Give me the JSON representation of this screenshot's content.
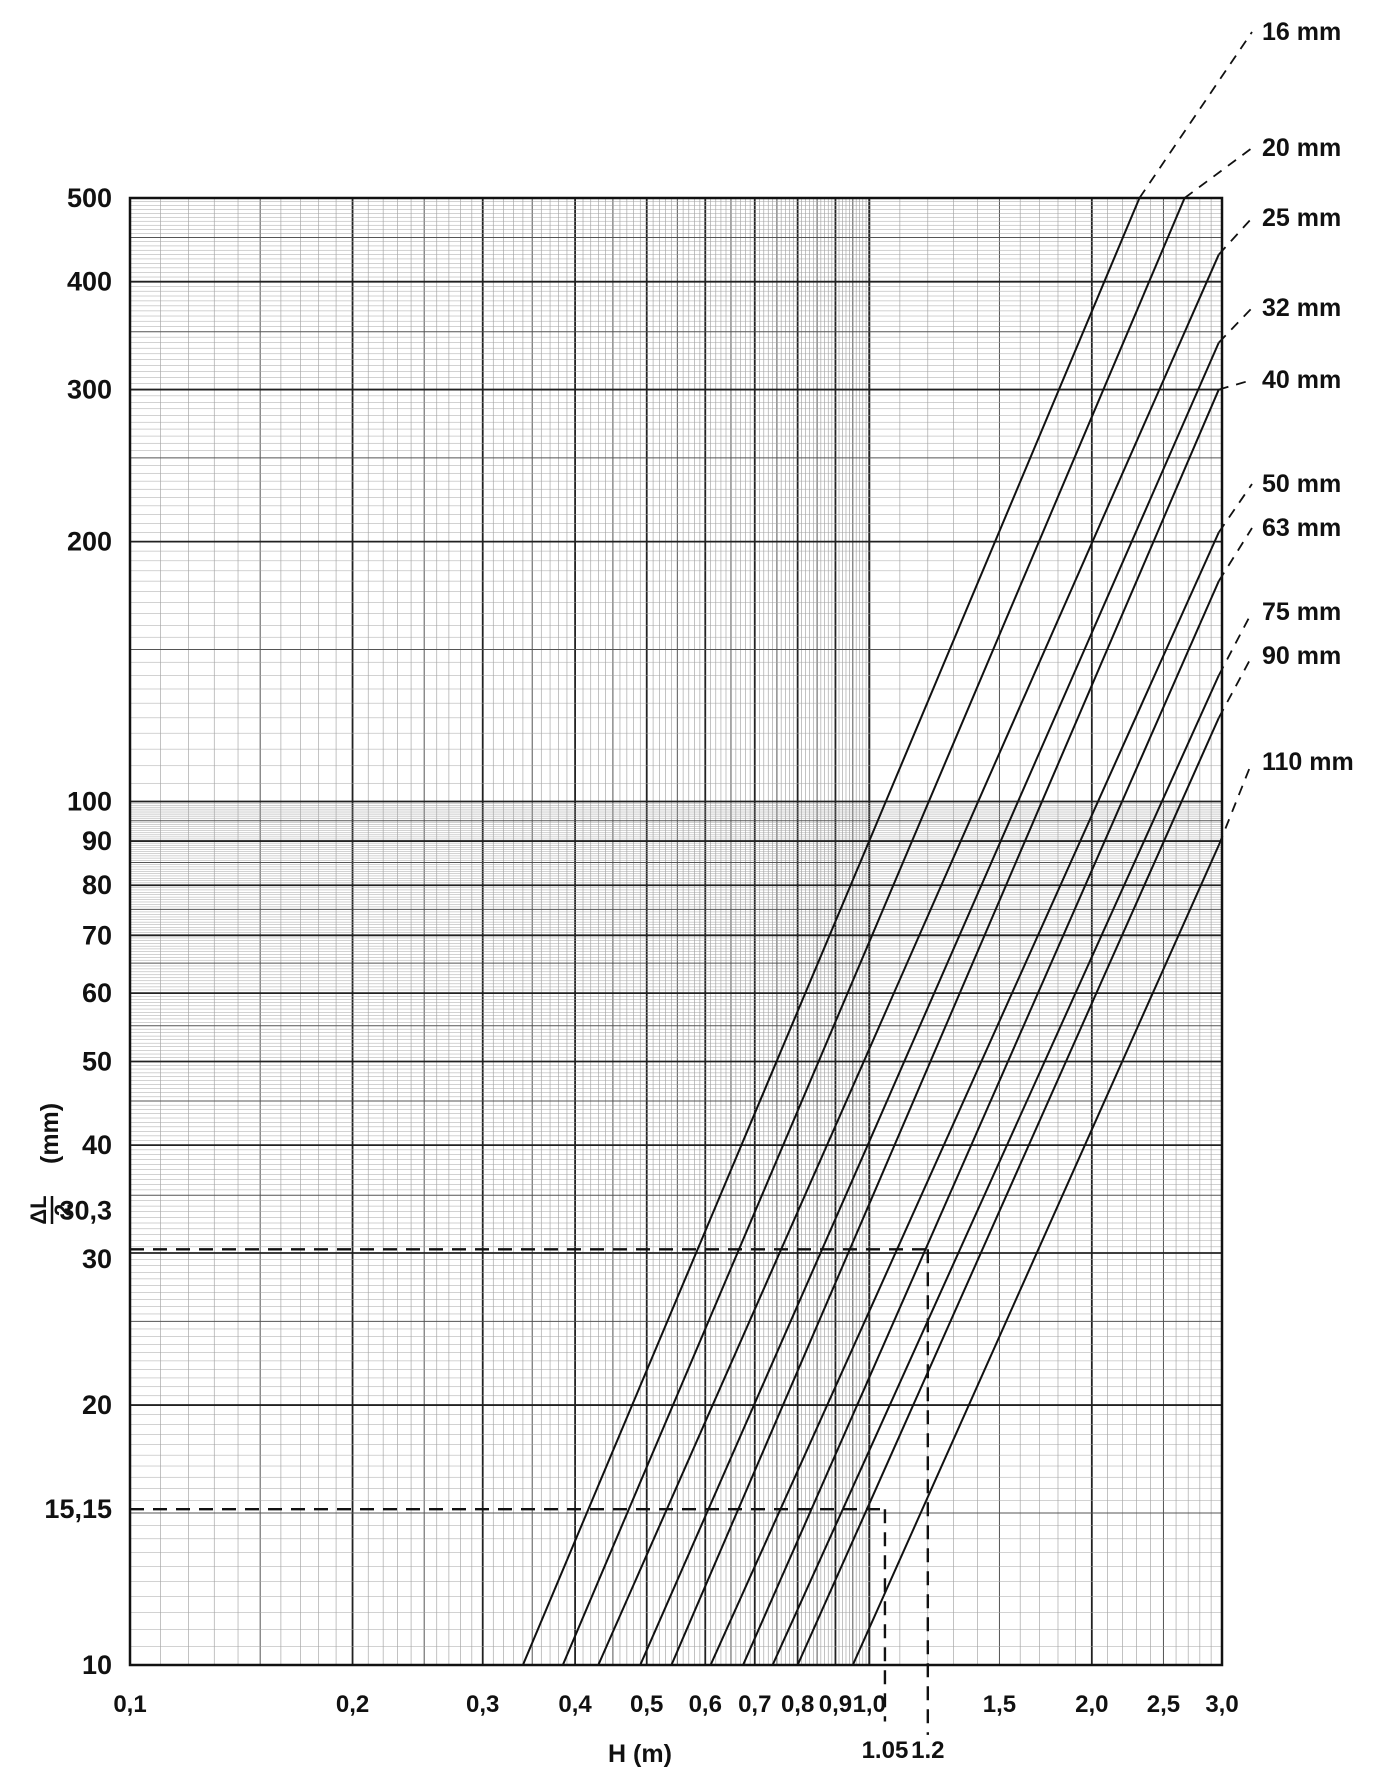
{
  "chart_data": {
    "type": "line",
    "title": "",
    "x_scale": "log",
    "y_scale": "log",
    "xlabel": "H (m)",
    "ylabel_top": "ΔL",
    "ylabel_bottom": "2",
    "ylabel_unit": "(mm)",
    "xlim": [
      0.1,
      3.0
    ],
    "ylim": [
      10,
      500
    ],
    "grid": true,
    "x_ticks": [
      {
        "value": 0.1,
        "label": "0,1"
      },
      {
        "value": 0.2,
        "label": "0,2"
      },
      {
        "value": 0.3,
        "label": "0,3"
      },
      {
        "value": 0.4,
        "label": "0,4"
      },
      {
        "value": 0.5,
        "label": "0,5"
      },
      {
        "value": 0.6,
        "label": "0,6"
      },
      {
        "value": 0.7,
        "label": "0,7"
      },
      {
        "value": 0.8,
        "label": "0,8"
      },
      {
        "value": 0.9,
        "label": "0,9"
      },
      {
        "value": 1.0,
        "label": "1,0"
      },
      {
        "value": 1.5,
        "label": "1,5"
      },
      {
        "value": 2.0,
        "label": "2,0"
      },
      {
        "value": 2.5,
        "label": "2,5"
      },
      {
        "value": 3.0,
        "label": "3,0"
      }
    ],
    "x_extra_ticks": [
      {
        "value": 1.05,
        "label": "1.05"
      },
      {
        "value": 1.2,
        "label": "1.2"
      }
    ],
    "y_ticks": [
      {
        "value": 10,
        "label": "10"
      },
      {
        "value": 15.15,
        "label": "15,15"
      },
      {
        "value": 20,
        "label": "20"
      },
      {
        "value": 30,
        "label": "30"
      },
      {
        "value": 30.3,
        "label": "30,3"
      },
      {
        "value": 40,
        "label": "40"
      },
      {
        "value": 50,
        "label": "50"
      },
      {
        "value": 60,
        "label": "60"
      },
      {
        "value": 70,
        "label": "70"
      },
      {
        "value": 80,
        "label": "80"
      },
      {
        "value": 90,
        "label": "90"
      },
      {
        "value": 100,
        "label": "100"
      },
      {
        "value": 200,
        "label": "200"
      },
      {
        "value": 300,
        "label": "300"
      },
      {
        "value": 400,
        "label": "400"
      },
      {
        "value": 500,
        "label": "500"
      }
    ],
    "series": [
      {
        "name": "16 mm",
        "x": [
          0.34,
          2.32
        ],
        "y": [
          10,
          500
        ]
      },
      {
        "name": "20 mm",
        "x": [
          0.385,
          2.67
        ],
        "y": [
          10,
          500
        ]
      },
      {
        "name": "25 mm",
        "x": [
          0.43,
          2.97
        ],
        "y": [
          10,
          430
        ]
      },
      {
        "name": "32 mm",
        "x": [
          0.49,
          2.97
        ],
        "y": [
          10,
          340
        ]
      },
      {
        "name": "40 mm",
        "x": [
          0.54,
          2.97
        ],
        "y": [
          10,
          300
        ]
      },
      {
        "name": "50 mm",
        "x": [
          0.61,
          2.97
        ],
        "y": [
          10,
          205
        ]
      },
      {
        "name": "63 mm",
        "x": [
          0.675,
          2.97
        ],
        "y": [
          10,
          180
        ]
      },
      {
        "name": "75 mm",
        "x": [
          0.74,
          2.97
        ],
        "y": [
          10,
          140
        ]
      },
      {
        "name": "90 mm",
        "x": [
          0.8,
          2.97
        ],
        "y": [
          10,
          125
        ]
      },
      {
        "name": "110 mm",
        "x": [
          0.95,
          2.97
        ],
        "y": [
          10,
          89
        ]
      }
    ],
    "reference_lines": [
      {
        "x": [
          0.1,
          1.2
        ],
        "y": [
          30.3,
          30.3
        ]
      },
      {
        "x": [
          1.2,
          1.2
        ],
        "y": [
          30.3,
          8.3
        ]
      },
      {
        "x": [
          0.1,
          1.05
        ],
        "y": [
          15.15,
          15.15
        ]
      },
      {
        "x": [
          1.05,
          1.05
        ],
        "y": [
          15.15,
          8.6
        ]
      }
    ]
  }
}
